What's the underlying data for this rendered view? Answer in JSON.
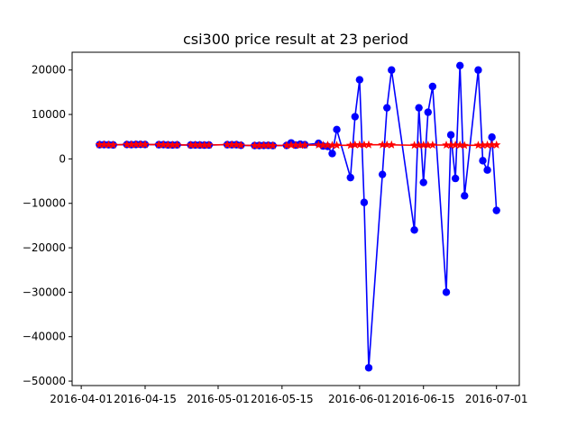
{
  "chart_data": {
    "type": "line",
    "title": "csi300 price result at 23 period",
    "xlabel": "",
    "ylabel": "",
    "x_ticks": [
      "2016-04-01",
      "2016-04-15",
      "2016-05-01",
      "2016-05-15",
      "2016-06-01",
      "2016-06-15",
      "2016-07-01"
    ],
    "y_ticks": [
      -50000,
      -40000,
      -30000,
      -20000,
      -10000,
      0,
      10000,
      20000
    ],
    "y_tick_labels": [
      "−50000",
      "−40000",
      "−30000",
      "−20000",
      "−10000",
      "0",
      "10000",
      "20000"
    ],
    "xlim": [
      "2016-03-30",
      "2016-07-06"
    ],
    "ylim": [
      -51000,
      24000
    ],
    "grid": false,
    "legend": "none",
    "colors": {
      "predicted": "#0000ff",
      "actual": "#ff0000"
    },
    "series": [
      {
        "marker": "circle",
        "color": "#0000ff",
        "points": [
          [
            "2016-04-05",
            3200
          ],
          [
            "2016-04-06",
            3210
          ],
          [
            "2016-04-07",
            3180
          ],
          [
            "2016-04-08",
            3150
          ],
          [
            "2016-04-11",
            3230
          ],
          [
            "2016-04-12",
            3210
          ],
          [
            "2016-04-13",
            3250
          ],
          [
            "2016-04-14",
            3260
          ],
          [
            "2016-04-15",
            3240
          ],
          [
            "2016-04-18",
            3200
          ],
          [
            "2016-04-19",
            3210
          ],
          [
            "2016-04-20",
            3150
          ],
          [
            "2016-04-21",
            3130
          ],
          [
            "2016-04-22",
            3160
          ],
          [
            "2016-04-25",
            3120
          ],
          [
            "2016-04-26",
            3140
          ],
          [
            "2016-04-27",
            3120
          ],
          [
            "2016-04-28",
            3100
          ],
          [
            "2016-04-29",
            3120
          ],
          [
            "2016-05-03",
            3200
          ],
          [
            "2016-05-04",
            3190
          ],
          [
            "2016-05-05",
            3200
          ],
          [
            "2016-05-06",
            3060
          ],
          [
            "2016-05-09",
            3010
          ],
          [
            "2016-05-10",
            3020
          ],
          [
            "2016-05-11",
            3040
          ],
          [
            "2016-05-12",
            3050
          ],
          [
            "2016-05-13",
            3000
          ],
          [
            "2016-05-16",
            3030
          ],
          [
            "2016-05-17",
            3600
          ],
          [
            "2016-05-18",
            3100
          ],
          [
            "2016-05-19",
            3300
          ],
          [
            "2016-05-20",
            3200
          ],
          [
            "2016-05-23",
            3500
          ],
          [
            "2016-05-24",
            2900
          ],
          [
            "2016-05-25",
            2800
          ],
          [
            "2016-05-26",
            1200
          ],
          [
            "2016-05-27",
            6600
          ],
          [
            "2016-05-30",
            -4200
          ],
          [
            "2016-05-31",
            9500
          ],
          [
            "2016-06-01",
            17800
          ],
          [
            "2016-06-02",
            -9800
          ],
          [
            "2016-06-03",
            -47000
          ],
          [
            "2016-06-06",
            -3500
          ],
          [
            "2016-06-07",
            11500
          ],
          [
            "2016-06-08",
            20000
          ],
          [
            "2016-06-13",
            -16000
          ],
          [
            "2016-06-14",
            11500
          ],
          [
            "2016-06-15",
            -5300
          ],
          [
            "2016-06-16",
            10500
          ],
          [
            "2016-06-17",
            16300
          ],
          [
            "2016-06-20",
            -30000
          ],
          [
            "2016-06-21",
            5400
          ],
          [
            "2016-06-22",
            -4400
          ],
          [
            "2016-06-23",
            21000
          ],
          [
            "2016-06-24",
            -8300
          ],
          [
            "2016-06-27",
            20000
          ],
          [
            "2016-06-28",
            -400
          ],
          [
            "2016-06-29",
            -2500
          ],
          [
            "2016-06-30",
            4900
          ],
          [
            "2016-07-01",
            -11600
          ]
        ]
      },
      {
        "marker": "star",
        "color": "#ff0000",
        "points": [
          [
            "2016-04-05",
            3200
          ],
          [
            "2016-04-06",
            3210
          ],
          [
            "2016-04-07",
            3180
          ],
          [
            "2016-04-08",
            3150
          ],
          [
            "2016-04-11",
            3230
          ],
          [
            "2016-04-12",
            3210
          ],
          [
            "2016-04-13",
            3250
          ],
          [
            "2016-04-14",
            3260
          ],
          [
            "2016-04-15",
            3240
          ],
          [
            "2016-04-18",
            3200
          ],
          [
            "2016-04-19",
            3210
          ],
          [
            "2016-04-20",
            3150
          ],
          [
            "2016-04-21",
            3130
          ],
          [
            "2016-04-22",
            3160
          ],
          [
            "2016-04-25",
            3120
          ],
          [
            "2016-04-26",
            3140
          ],
          [
            "2016-04-27",
            3120
          ],
          [
            "2016-04-28",
            3100
          ],
          [
            "2016-04-29",
            3120
          ],
          [
            "2016-05-03",
            3200
          ],
          [
            "2016-05-04",
            3190
          ],
          [
            "2016-05-05",
            3200
          ],
          [
            "2016-05-06",
            3060
          ],
          [
            "2016-05-09",
            3010
          ],
          [
            "2016-05-10",
            3020
          ],
          [
            "2016-05-11",
            3040
          ],
          [
            "2016-05-12",
            3050
          ],
          [
            "2016-05-13",
            3000
          ],
          [
            "2016-05-16",
            3030
          ],
          [
            "2016-05-17",
            3100
          ],
          [
            "2016-05-18",
            3110
          ],
          [
            "2016-05-19",
            3080
          ],
          [
            "2016-05-20",
            3100
          ],
          [
            "2016-05-23",
            3130
          ],
          [
            "2016-05-24",
            3090
          ],
          [
            "2016-05-25",
            3100
          ],
          [
            "2016-05-26",
            3060
          ],
          [
            "2016-05-27",
            3070
          ],
          [
            "2016-05-30",
            3050
          ],
          [
            "2016-05-31",
            3170
          ],
          [
            "2016-06-01",
            3160
          ],
          [
            "2016-06-02",
            3170
          ],
          [
            "2016-06-03",
            3190
          ],
          [
            "2016-06-06",
            3180
          ],
          [
            "2016-06-07",
            3180
          ],
          [
            "2016-06-08",
            3160
          ],
          [
            "2016-06-13",
            3070
          ],
          [
            "2016-06-14",
            3080
          ],
          [
            "2016-06-15",
            3120
          ],
          [
            "2016-06-16",
            3100
          ],
          [
            "2016-06-17",
            3120
          ],
          [
            "2016-06-20",
            3120
          ],
          [
            "2016-06-21",
            3110
          ],
          [
            "2016-06-22",
            3140
          ],
          [
            "2016-06-23",
            3120
          ],
          [
            "2016-06-24",
            3030
          ],
          [
            "2016-06-27",
            3080
          ],
          [
            "2016-06-28",
            3100
          ],
          [
            "2016-06-29",
            3140
          ],
          [
            "2016-06-30",
            3150
          ],
          [
            "2016-07-01",
            3150
          ]
        ]
      }
    ]
  }
}
